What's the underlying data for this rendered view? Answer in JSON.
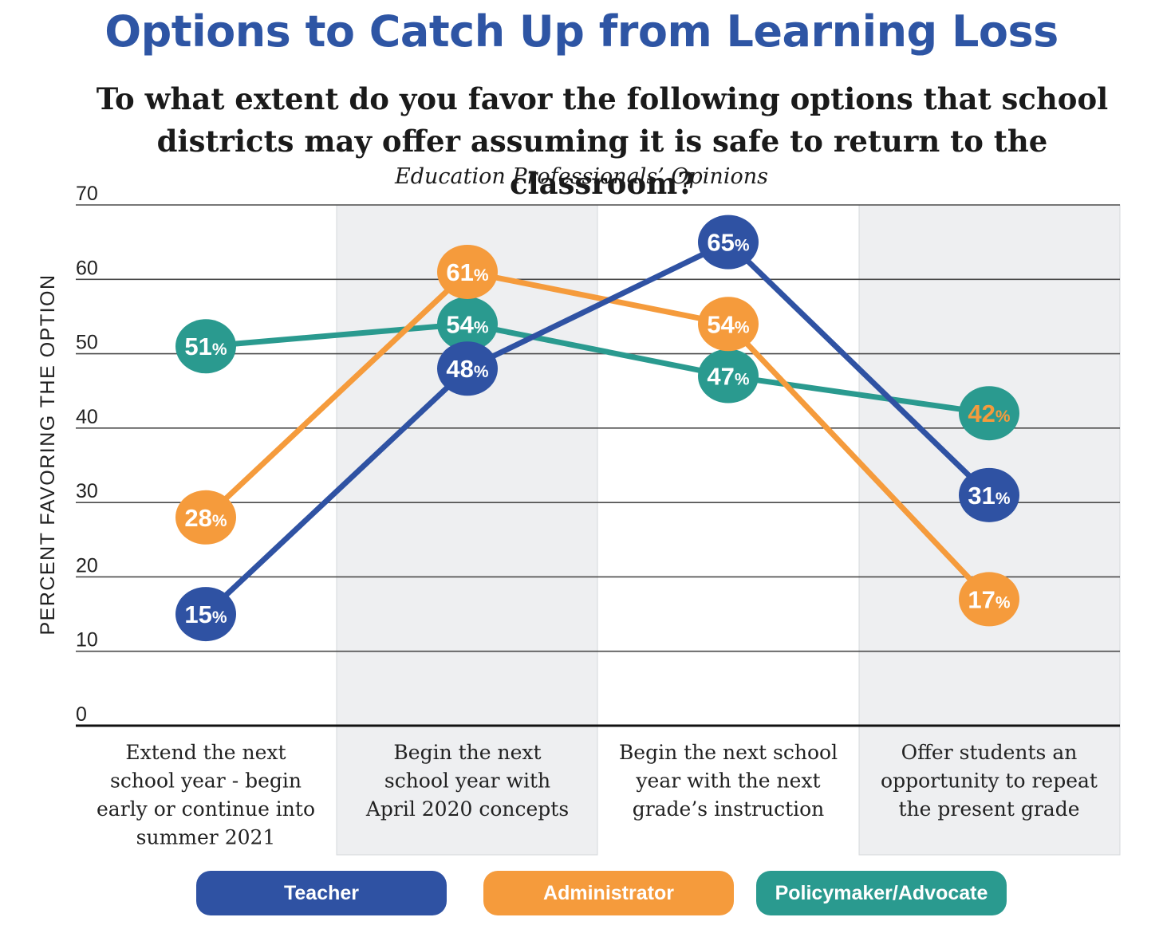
{
  "title": "Options to Catch Up from Learning Loss",
  "subtitle": "To what extent do you favor the following options that school districts may offer assuming it is safe to return to the classroom?",
  "caption": "Education Professionals’ Opinions",
  "colors": {
    "teacher": "#2f52a3",
    "administrator": "#f59b3c",
    "policymaker": "#2a9a8f",
    "band": "#eeeff1",
    "grid": "#4a4a4a"
  },
  "chart_data": {
    "type": "line",
    "ylabel": "PERCENT FAVORING THE OPTION",
    "ylim": [
      0,
      70
    ],
    "yticks": [
      "0",
      "10",
      "20",
      "30",
      "40",
      "50",
      "60",
      "70"
    ],
    "categories": [
      [
        "Extend the next",
        "school year - begin",
        "early or continue into",
        "summer 2021"
      ],
      [
        "Begin the next",
        "school year with",
        "April 2020 concepts"
      ],
      [
        "Begin the next school",
        "year with the next",
        "grade’s instruction"
      ],
      [
        "Offer students an",
        "opportunity to repeat",
        "the present grade"
      ]
    ],
    "series": [
      {
        "name": "Policymaker/Advocate",
        "key": "policymaker",
        "values": [
          51,
          54,
          47,
          42
        ],
        "labels": [
          "51",
          "54",
          "47",
          "42"
        ],
        "text_color": [
          "#ffffff",
          "#ffffff",
          "#ffffff",
          "#f59b3c"
        ]
      },
      {
        "name": "Administrator",
        "key": "administrator",
        "values": [
          28,
          61,
          54,
          17
        ],
        "labels": [
          "28",
          "61",
          "54",
          "17"
        ],
        "text_color": [
          "#ffffff",
          "#ffffff",
          "#ffffff",
          "#ffffff"
        ]
      },
      {
        "name": "Teacher",
        "key": "teacher",
        "values": [
          15,
          48,
          65,
          31
        ],
        "labels": [
          "15",
          "48",
          "65",
          "31"
        ],
        "text_color": [
          "#ffffff",
          "#ffffff",
          "#ffffff",
          "#ffffff"
        ]
      }
    ],
    "label_suffix": "%",
    "legend": [
      "Teacher",
      "Administrator",
      "Policymaker/Advocate"
    ],
    "legend_position": "bottom"
  }
}
